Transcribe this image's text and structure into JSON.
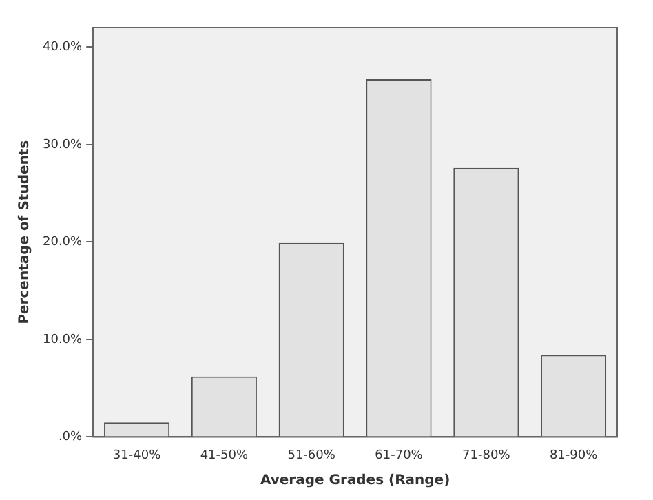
{
  "chart_data": {
    "type": "bar",
    "xlabel": "Average Grades (Range)",
    "ylabel": "Percentage of Students",
    "categories": [
      "31-40%",
      "41-50%",
      "51-60%",
      "61-70%",
      "71-80%",
      "81-90%"
    ],
    "values": [
      1.5,
      6.2,
      19.9,
      36.7,
      27.6,
      8.4
    ],
    "color": "#e2e2e2",
    "ylim": [
      0,
      42
    ],
    "yticks": [
      {
        "value": 0,
        "label": ".0%"
      },
      {
        "value": 10,
        "label": "10.0%"
      },
      {
        "value": 20,
        "label": "20.0%"
      },
      {
        "value": 30,
        "label": "30.0%"
      },
      {
        "value": 40,
        "label": "40.0%"
      }
    ],
    "grid": false,
    "legend": false
  }
}
